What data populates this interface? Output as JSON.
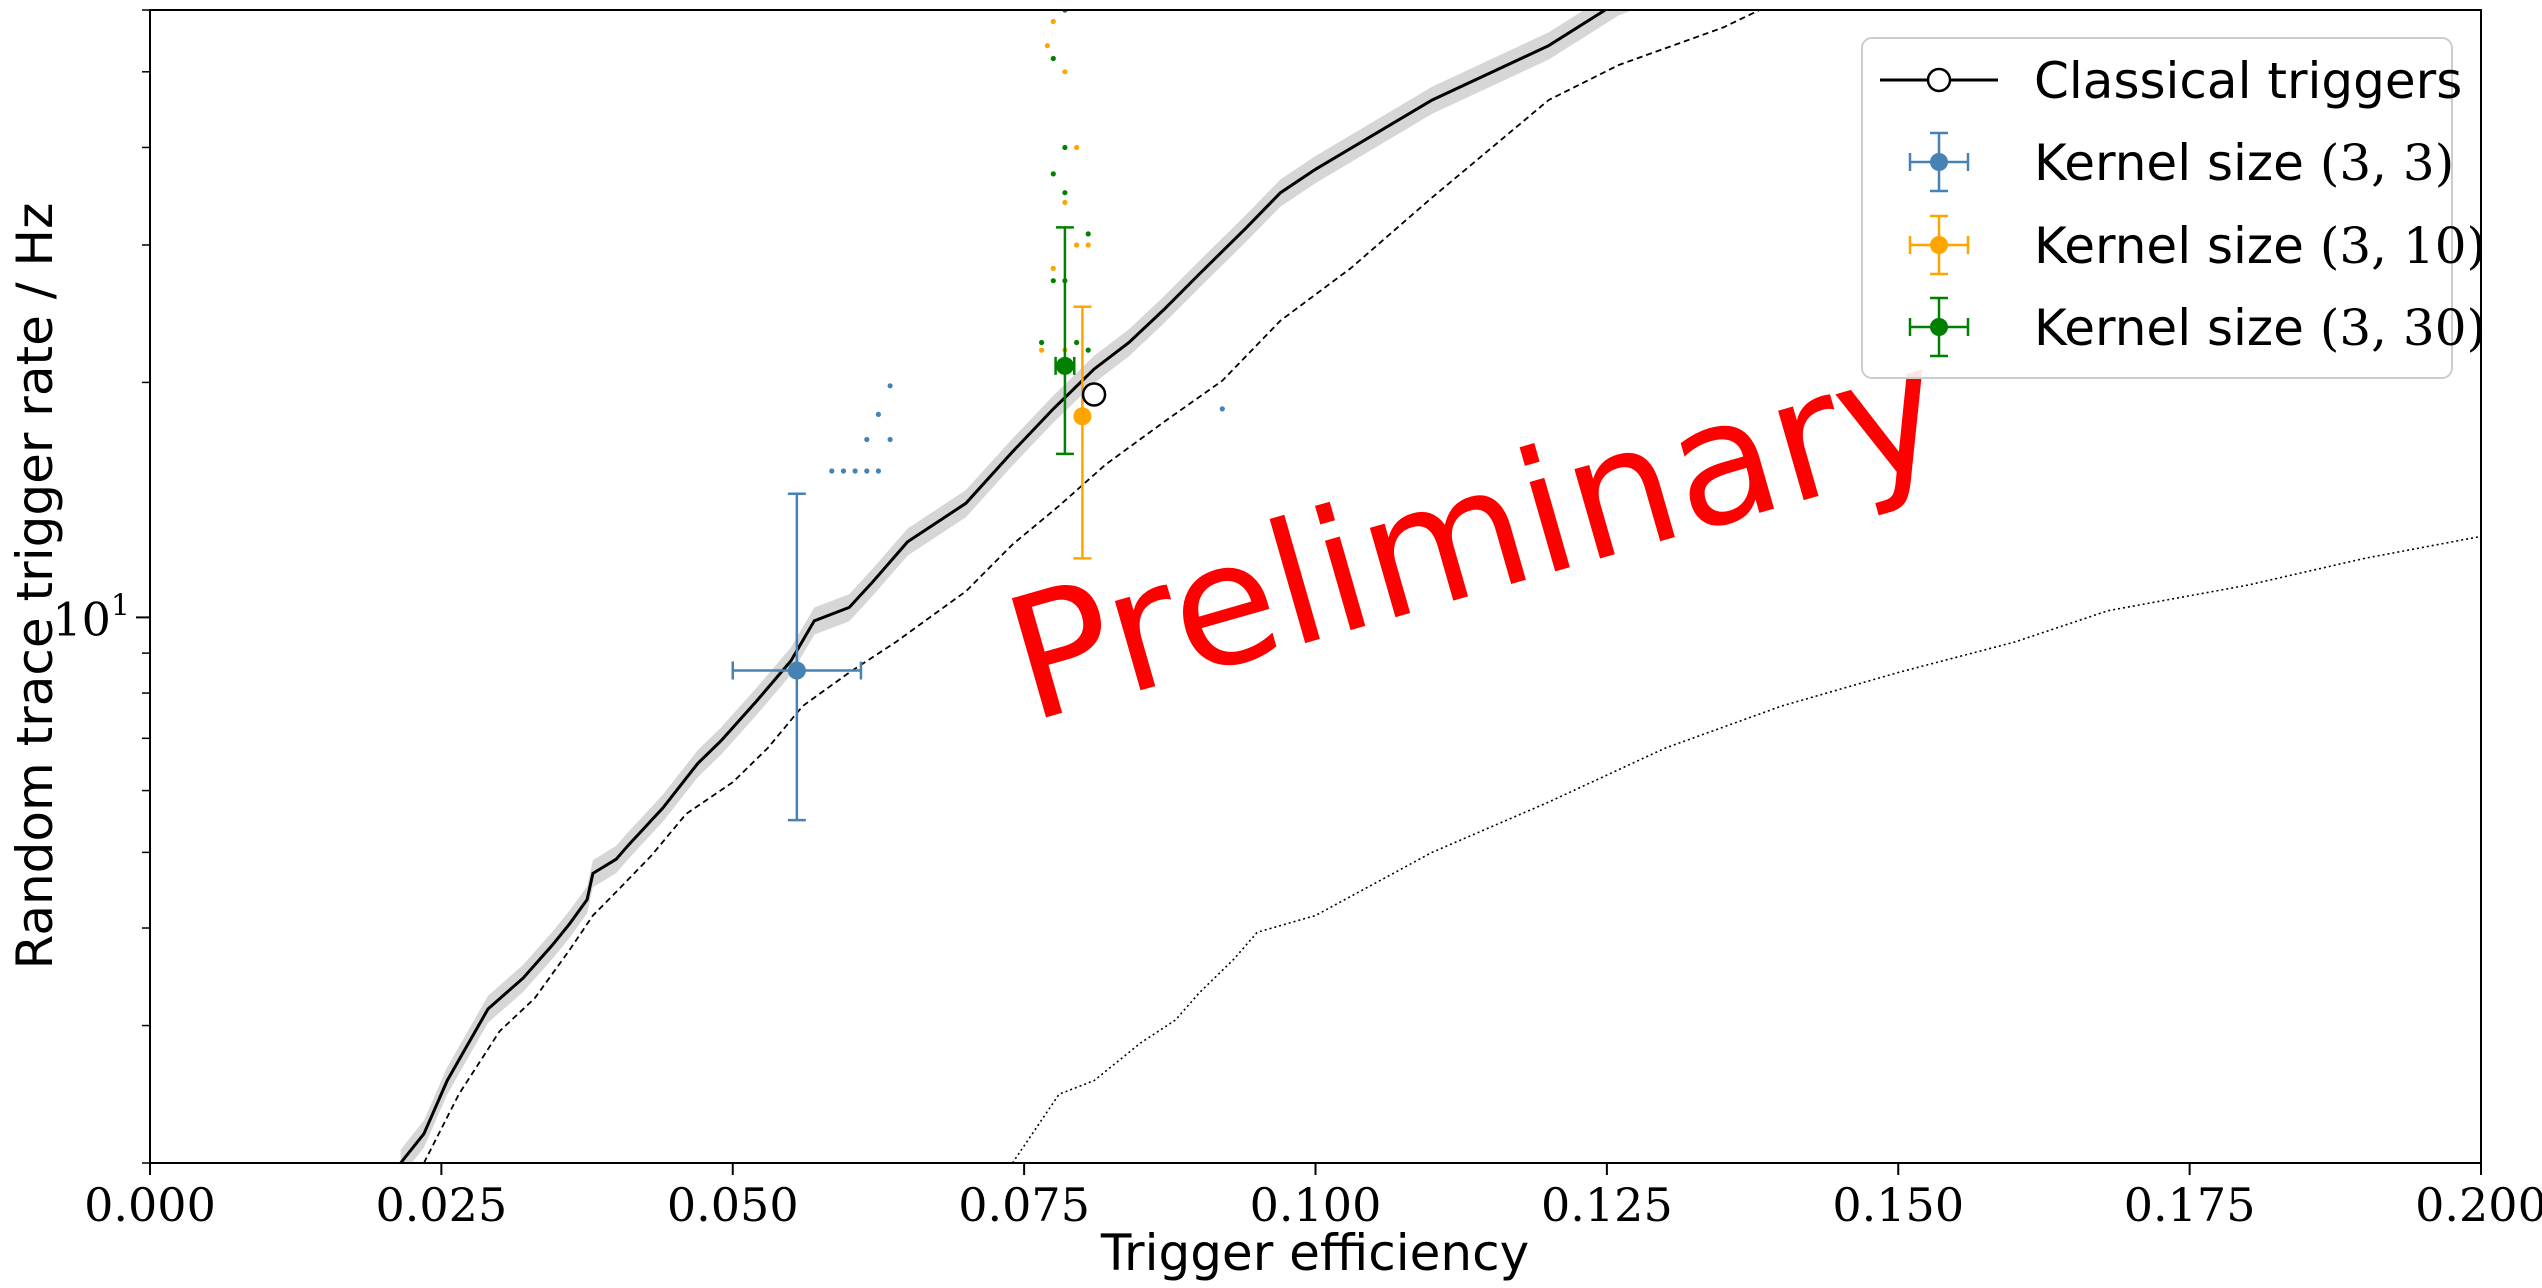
{
  "chart_data": {
    "type": "scatter",
    "title": "",
    "xlabel": "Trigger efficiency",
    "ylabel": "Random trace trigger rate / Hz",
    "xlim": [
      0.0,
      0.2
    ],
    "ylim": [
      2.0,
      60.0
    ],
    "yscale": "log",
    "grid": false,
    "legend_position": "top-right",
    "x_ticks": [
      "0.000",
      "0.025",
      "0.050",
      "0.075",
      "0.100",
      "0.125",
      "0.150",
      "0.175",
      "0.200"
    ],
    "y_tick_major": {
      "base": "10",
      "exponent": "1",
      "value": 10
    },
    "watermark": "Preliminary",
    "colors": {
      "blue": "#4682b4",
      "orange": "#ffa500",
      "green": "#008000",
      "red": "#ff0000",
      "black": "#000000",
      "band": "#bbbbbb"
    },
    "series": [
      {
        "name": "Classical triggers",
        "kind": "line",
        "color": "#000000",
        "x": [
          0.0215,
          0.0235,
          0.0255,
          0.029,
          0.032,
          0.0345,
          0.036,
          0.0375,
          0.038,
          0.04,
          0.041,
          0.044,
          0.047,
          0.049,
          0.052,
          0.055,
          0.057,
          0.06,
          0.062,
          0.065,
          0.07,
          0.074,
          0.0775,
          0.081,
          0.084,
          0.087,
          0.09,
          0.094,
          0.097,
          0.1,
          0.11,
          0.12,
          0.126,
          0.129
        ],
        "y": [
          2.0,
          2.18,
          2.55,
          3.15,
          3.45,
          3.8,
          4.05,
          4.35,
          4.7,
          4.9,
          5.1,
          5.7,
          6.5,
          6.95,
          7.8,
          8.8,
          9.9,
          10.3,
          11.1,
          12.5,
          14.0,
          16.3,
          18.5,
          20.8,
          22.5,
          24.8,
          27.5,
          31.5,
          35.0,
          37.5,
          46.0,
          54.0,
          61.5,
          64.0
        ],
        "highlight_point": {
          "x": 0.081,
          "y": 19.3
        }
      },
      {
        "name": "",
        "kind": "dashed-line",
        "color": "#000000",
        "x": [
          0.0235,
          0.0265,
          0.03,
          0.033,
          0.036,
          0.038,
          0.04,
          0.043,
          0.046,
          0.05,
          0.053,
          0.056,
          0.06,
          0.064,
          0.07,
          0.074,
          0.078,
          0.082,
          0.087,
          0.092,
          0.097,
          0.103,
          0.11,
          0.12,
          0.126,
          0.135,
          0.142
        ],
        "y": [
          2.0,
          2.45,
          2.95,
          3.25,
          3.75,
          4.15,
          4.45,
          4.95,
          5.6,
          6.15,
          6.8,
          7.7,
          8.5,
          9.3,
          10.8,
          12.4,
          13.9,
          15.7,
          17.8,
          20.1,
          24.0,
          28.0,
          34.5,
          46.0,
          51.0,
          57.0,
          64.0
        ],
        "style": "dashed"
      },
      {
        "name": "",
        "kind": "dotted-line",
        "color": "#000000",
        "x": [
          0.074,
          0.078,
          0.081,
          0.085,
          0.088,
          0.09,
          0.093,
          0.095,
          0.1,
          0.11,
          0.12,
          0.13,
          0.14,
          0.15,
          0.16,
          0.168,
          0.18,
          0.19,
          0.2
        ],
        "y": [
          2.0,
          2.45,
          2.55,
          2.85,
          3.05,
          3.3,
          3.65,
          3.95,
          4.15,
          5.0,
          5.8,
          6.8,
          7.7,
          8.5,
          9.3,
          10.2,
          11.0,
          11.9,
          12.7
        ]
      }
    ],
    "error_points": [
      {
        "name": "Kernel size",
        "label": "(3, 3)",
        "color": "#4682b4",
        "x": 0.0555,
        "xerr": [
          0.0055,
          0.0055
        ],
        "y": 8.55,
        "yerr": [
          5.5,
          14.4
        ]
      },
      {
        "name": "Kernel size",
        "label": "(3, 10)",
        "color": "#ffa500",
        "x": 0.08,
        "xerr": [
          0.0,
          0.0
        ],
        "y": 18.1,
        "yerr": [
          11.9,
          25.0
        ]
      },
      {
        "name": "Kernel size",
        "label": "(3, 30)",
        "color": "#008000",
        "x": 0.0785,
        "xerr": [
          0.0008,
          0.0008
        ],
        "y": 21.0,
        "yerr": [
          16.2,
          31.6
        ]
      }
    ],
    "scatter_dots": [
      {
        "color": "#4682b4",
        "points": [
          [
            0.0585,
            15.4
          ],
          [
            0.0595,
            15.4
          ],
          [
            0.0605,
            15.4
          ],
          [
            0.0615,
            15.4
          ],
          [
            0.0625,
            15.4
          ],
          [
            0.0615,
            16.9
          ],
          [
            0.0635,
            16.9
          ],
          [
            0.0625,
            18.2
          ],
          [
            0.0635,
            19.8
          ],
          [
            0.092,
            18.5
          ]
        ]
      },
      {
        "color": "#ffa500",
        "points": [
          [
            0.0755,
            76.0
          ],
          [
            0.077,
            54.0
          ],
          [
            0.0775,
            58.0
          ],
          [
            0.0785,
            50.0
          ],
          [
            0.0795,
            40.0
          ],
          [
            0.0785,
            34.0
          ],
          [
            0.0795,
            30.0
          ],
          [
            0.0775,
            28.0
          ],
          [
            0.0805,
            30.0
          ],
          [
            0.0765,
            22.0
          ],
          [
            0.0785,
            22.0
          ]
        ]
      },
      {
        "color": "#008000",
        "points": [
          [
            0.0775,
            52.0
          ],
          [
            0.0785,
            60.0
          ],
          [
            0.0785,
            40.0
          ],
          [
            0.0775,
            37.0
          ],
          [
            0.0785,
            35.0
          ],
          [
            0.0805,
            31.0
          ],
          [
            0.0775,
            27.0
          ],
          [
            0.0785,
            27.0
          ],
          [
            0.0765,
            22.5
          ],
          [
            0.0795,
            22.5
          ],
          [
            0.0805,
            22.0
          ]
        ]
      }
    ],
    "confidence_band": {
      "series": "Classical triggers",
      "relative_width": 0.04
    }
  }
}
